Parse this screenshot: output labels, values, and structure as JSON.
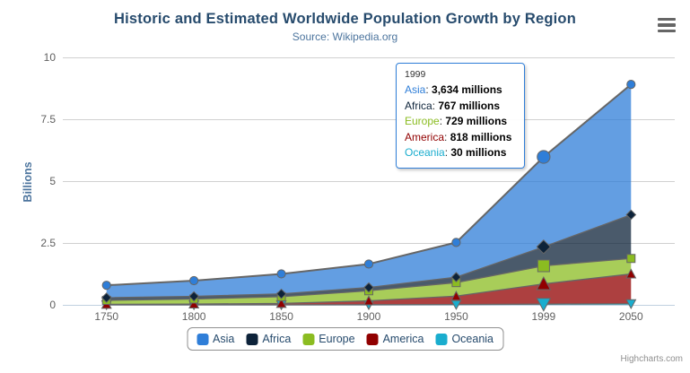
{
  "chart": {
    "title": "Historic and Estimated Worldwide Population Growth by Region",
    "subtitle": "Source: Wikipedia.org",
    "credits": "Highcharts.com"
  },
  "chart_data": {
    "type": "area",
    "stacking": "normal",
    "title": "Historic and Estimated Worldwide Population Growth by Region",
    "subtitle": "Source: Wikipedia.org",
    "xlabel": "",
    "ylabel": "Billions",
    "unit": "millions",
    "ylim": [
      0,
      10
    ],
    "yticks": [
      0,
      2.5,
      5,
      7.5,
      10
    ],
    "ytick_labels": [
      "0",
      "2.5",
      "5",
      "7.5",
      "10"
    ],
    "categories": [
      "1750",
      "1800",
      "1850",
      "1900",
      "1950",
      "1999",
      "2050"
    ],
    "grid": "horizontal",
    "legend_position": "bottom",
    "hover_category_index": 5,
    "series": [
      {
        "name": "Asia",
        "color": "#2f7ed8",
        "marker": "circle",
        "values": [
          502,
          635,
          809,
          947,
          1402,
          3634,
          5268
        ]
      },
      {
        "name": "Africa",
        "color": "#0d233a",
        "marker": "diamond",
        "values": [
          106,
          107,
          111,
          133,
          221,
          767,
          1766
        ]
      },
      {
        "name": "Europe",
        "color": "#8bbc21",
        "marker": "square",
        "values": [
          163,
          203,
          276,
          408,
          547,
          729,
          628
        ]
      },
      {
        "name": "America",
        "color": "#910000",
        "marker": "triangle",
        "values": [
          18,
          31,
          54,
          156,
          339,
          818,
          1201
        ]
      },
      {
        "name": "Oceania",
        "color": "#1aadce",
        "marker": "triangle-down",
        "values": [
          2,
          2,
          2,
          6,
          13,
          30,
          46
        ]
      }
    ]
  },
  "tooltip": {
    "header": "1999",
    "rows": [
      {
        "series": "Asia",
        "value": "3,634 millions"
      },
      {
        "series": "Africa",
        "value": "767 millions"
      },
      {
        "series": "Europe",
        "value": "729 millions"
      },
      {
        "series": "America",
        "value": "818 millions"
      },
      {
        "series": "Oceania",
        "value": "30 millions"
      }
    ]
  },
  "colors": {
    "title": "#274b6d",
    "subtitle": "#4d759e",
    "axis_title": "#4d759e",
    "axis_labels": "#606060",
    "axis_line": "#c0d0e0",
    "gridline": "#d0d0d0",
    "series_line": "#666666",
    "marker_stroke": "#666666",
    "legend_text": "#274b6d",
    "legend_border": "#909090",
    "tooltip_border": "#2f7ed8",
    "credits": "#909090",
    "menu_icon": "#666666"
  }
}
